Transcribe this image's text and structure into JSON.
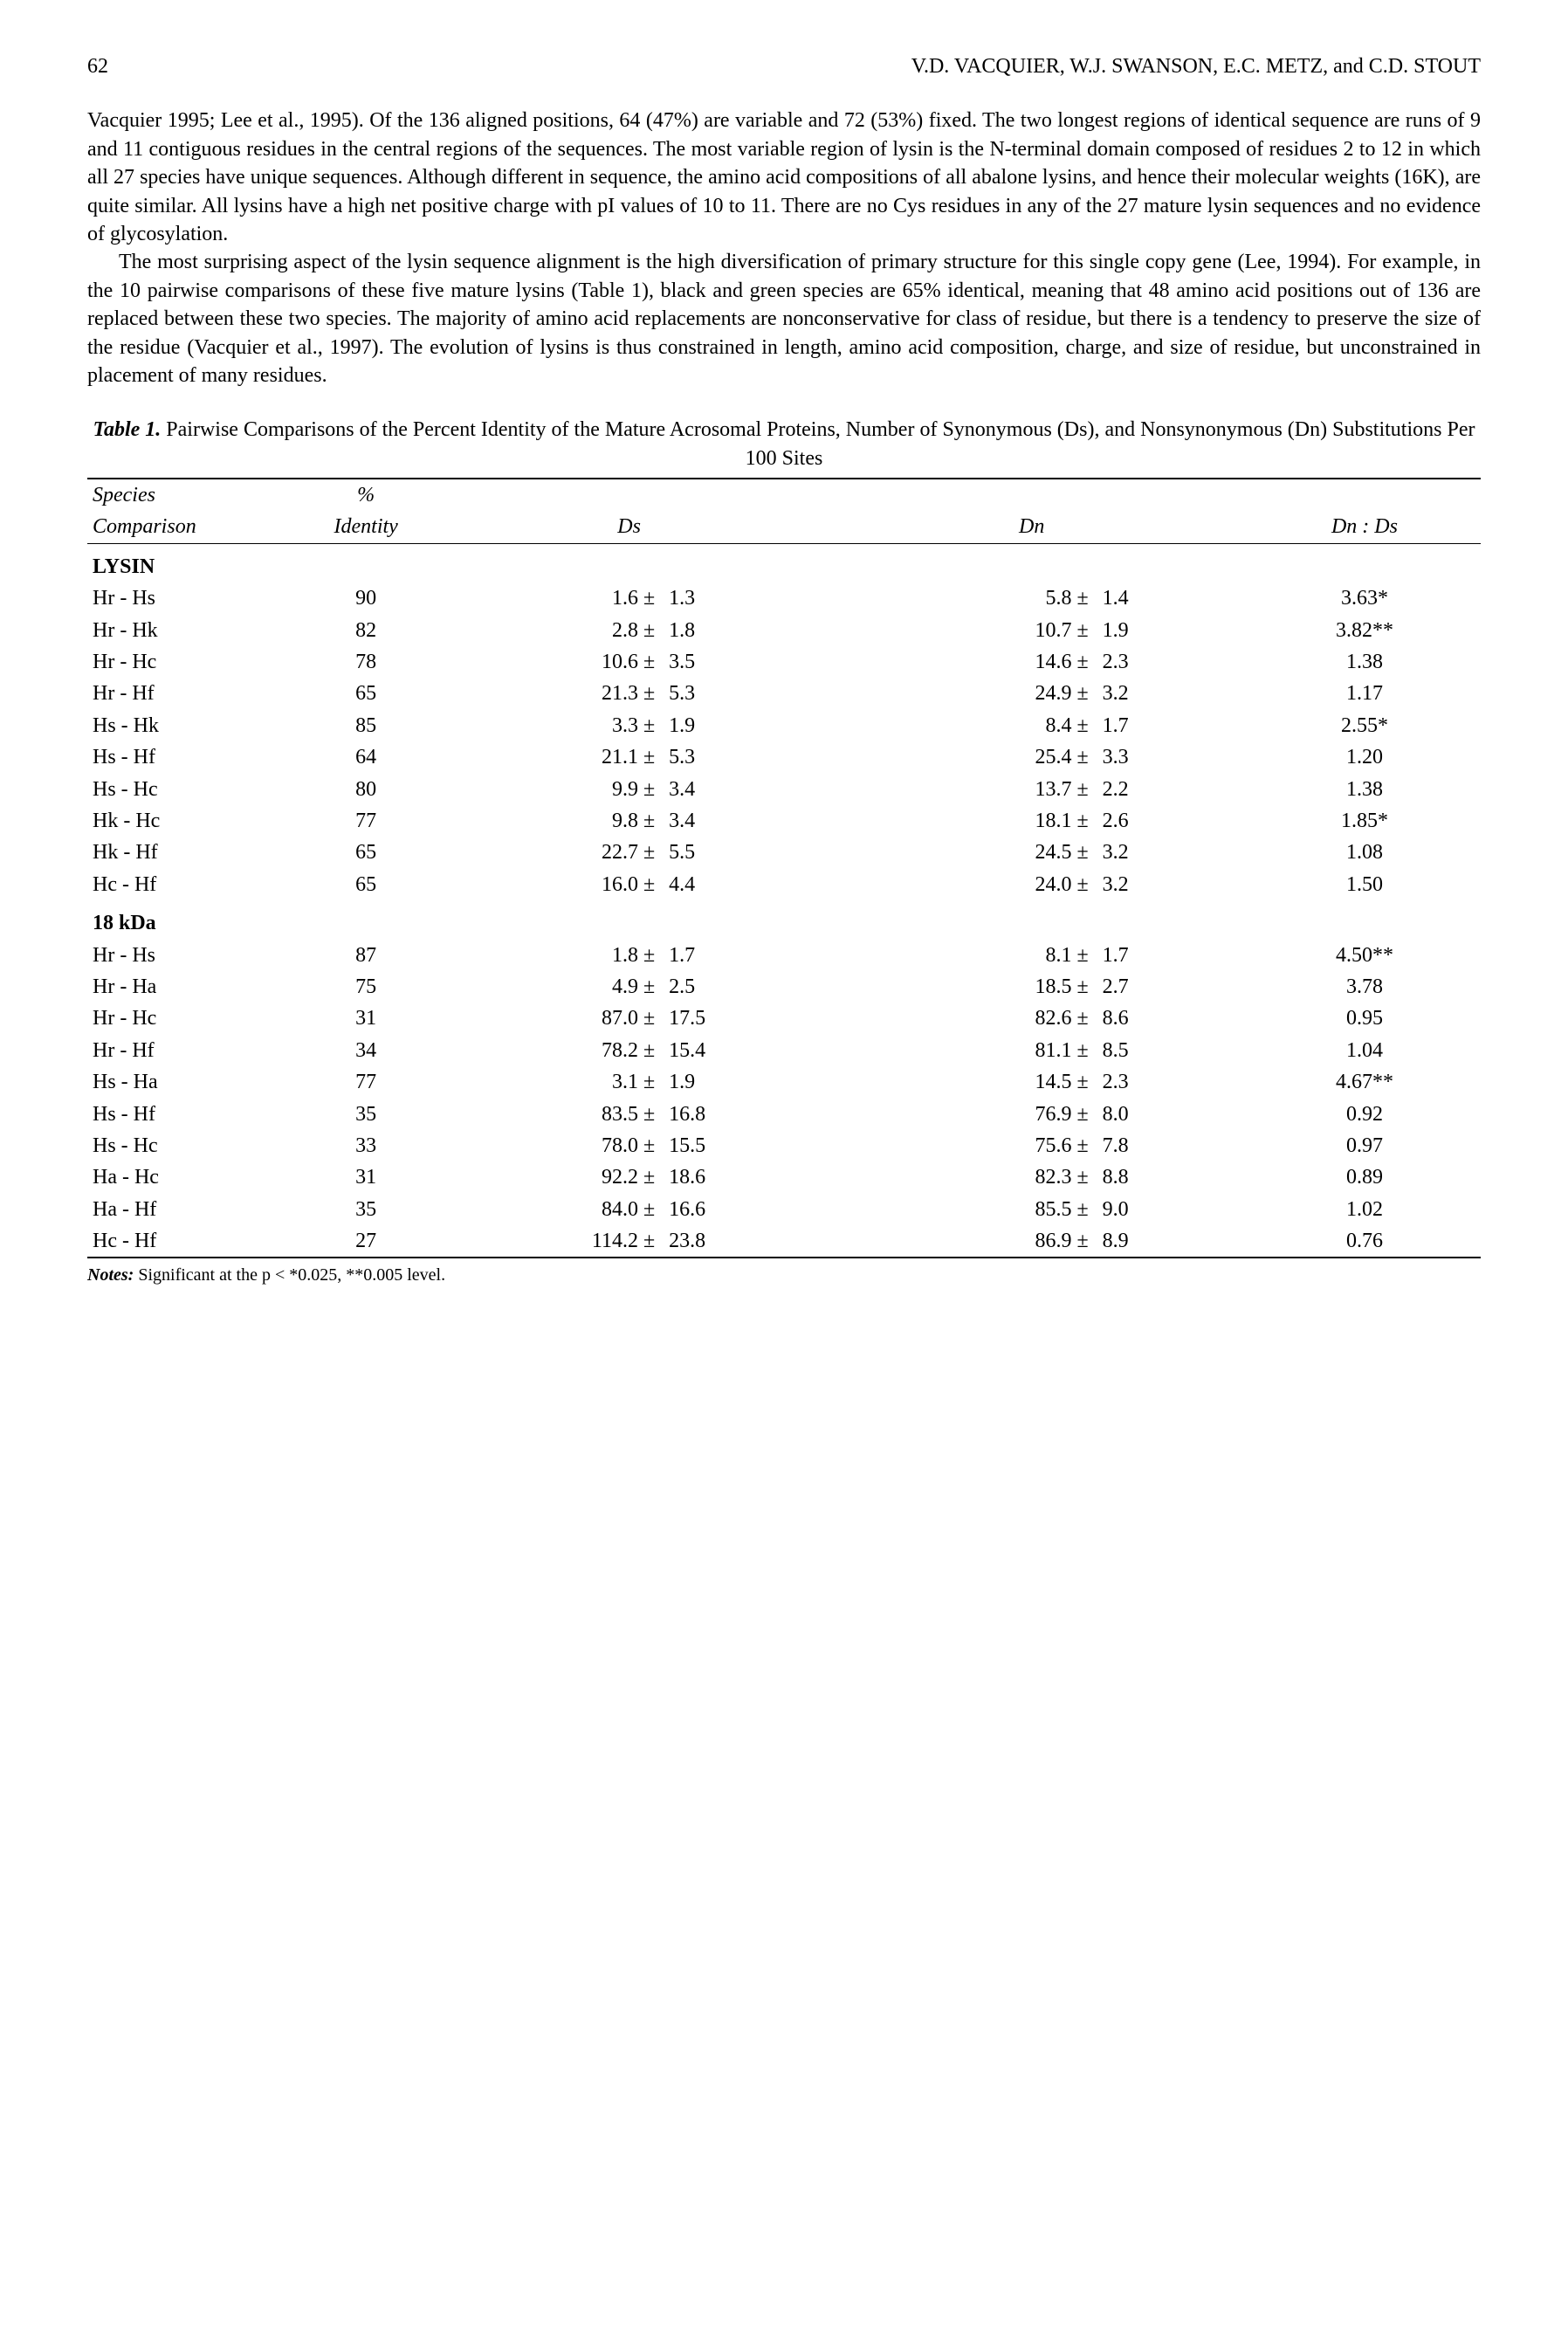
{
  "header": {
    "page_number": "62",
    "running_head": "V.D. VACQUIER, W.J. SWANSON, E.C. METZ, and C.D. STOUT"
  },
  "paragraphs": {
    "p1": "Vacquier 1995; Lee et al., 1995). Of the 136 aligned positions, 64 (47%) are variable and 72 (53%) fixed. The two longest regions of identical sequence are runs of 9 and 11 contiguous residues in the central regions of the sequences. The most variable region of lysin is the N-terminal domain composed of residues 2 to 12 in which all 27 species have unique sequences. Although different in sequence, the amino acid compositions of all abalone lysins, and hence their molecular weights (16K), are quite similar. All lysins have a high net positive charge with pI values of 10 to 11. There are no Cys residues in any of the 27 mature lysin sequences and no evidence of glycosylation.",
    "p2": "The most surprising aspect of the lysin sequence alignment is the high diversification of primary structure for this single copy gene (Lee, 1994). For example, in the 10 pairwise comparisons of these five mature lysins (Table 1), black and green species are 65% identical, meaning that 48 amino acid positions out of 136 are replaced between these two species. The majority of amino acid replacements are nonconservative for class of residue, but there is a tendency to preserve the size of the residue (Vacquier et al., 1997). The evolution of lysins is thus constrained in length, amino acid composition, charge, and size of residue, but unconstrained in placement of many residues."
  },
  "table": {
    "caption_label": "Table 1.",
    "caption_text": "Pairwise Comparisons of the Percent Identity of the Mature Acrosomal Proteins, Number of Synonymous (Ds), and Nonsynonymous (Dn) Substitutions Per 100 Sites",
    "columns": {
      "c1a": "Species",
      "c1b": "Comparison",
      "c2a": "%",
      "c2b": "Identity",
      "c3": "Ds",
      "c4": "Dn",
      "c5": "Dn : Ds"
    },
    "sections": [
      {
        "title": "LYSIN",
        "rows": [
          {
            "sp": "Hr - Hs",
            "id": "90",
            "dsv": "1.6 ±",
            "dse": "1.3",
            "dnv": "5.8 ±",
            "dne": "1.4",
            "ratio": "3.63*"
          },
          {
            "sp": "Hr - Hk",
            "id": "82",
            "dsv": "2.8 ±",
            "dse": "1.8",
            "dnv": "10.7 ±",
            "dne": "1.9",
            "ratio": "3.82**"
          },
          {
            "sp": "Hr - Hc",
            "id": "78",
            "dsv": "10.6 ±",
            "dse": "3.5",
            "dnv": "14.6 ±",
            "dne": "2.3",
            "ratio": "1.38"
          },
          {
            "sp": "Hr - Hf",
            "id": "65",
            "dsv": "21.3 ±",
            "dse": "5.3",
            "dnv": "24.9 ±",
            "dne": "3.2",
            "ratio": "1.17"
          },
          {
            "sp": "Hs - Hk",
            "id": "85",
            "dsv": "3.3 ±",
            "dse": "1.9",
            "dnv": "8.4 ±",
            "dne": "1.7",
            "ratio": "2.55*"
          },
          {
            "sp": "Hs - Hf",
            "id": "64",
            "dsv": "21.1 ±",
            "dse": "5.3",
            "dnv": "25.4 ±",
            "dne": "3.3",
            "ratio": "1.20"
          },
          {
            "sp": "Hs - Hc",
            "id": "80",
            "dsv": "9.9 ±",
            "dse": "3.4",
            "dnv": "13.7 ±",
            "dne": "2.2",
            "ratio": "1.38"
          },
          {
            "sp": "Hk - Hc",
            "id": "77",
            "dsv": "9.8 ±",
            "dse": "3.4",
            "dnv": "18.1 ±",
            "dne": "2.6",
            "ratio": "1.85*"
          },
          {
            "sp": "Hk - Hf",
            "id": "65",
            "dsv": "22.7 ±",
            "dse": "5.5",
            "dnv": "24.5 ±",
            "dne": "3.2",
            "ratio": "1.08"
          },
          {
            "sp": "Hc - Hf",
            "id": "65",
            "dsv": "16.0 ±",
            "dse": "4.4",
            "dnv": "24.0 ±",
            "dne": "3.2",
            "ratio": "1.50"
          }
        ]
      },
      {
        "title": "18 kDa",
        "rows": [
          {
            "sp": "Hr - Hs",
            "id": "87",
            "dsv": "1.8 ±",
            "dse": "1.7",
            "dnv": "8.1 ±",
            "dne": "1.7",
            "ratio": "4.50**"
          },
          {
            "sp": "Hr - Ha",
            "id": "75",
            "dsv": "4.9 ±",
            "dse": "2.5",
            "dnv": "18.5 ±",
            "dne": "2.7",
            "ratio": "3.78"
          },
          {
            "sp": "Hr - Hc",
            "id": "31",
            "dsv": "87.0 ±",
            "dse": "17.5",
            "dnv": "82.6 ±",
            "dne": "8.6",
            "ratio": "0.95"
          },
          {
            "sp": "Hr - Hf",
            "id": "34",
            "dsv": "78.2 ±",
            "dse": "15.4",
            "dnv": "81.1 ±",
            "dne": "8.5",
            "ratio": "1.04"
          },
          {
            "sp": "Hs - Ha",
            "id": "77",
            "dsv": "3.1 ±",
            "dse": "1.9",
            "dnv": "14.5 ±",
            "dne": "2.3",
            "ratio": "4.67**"
          },
          {
            "sp": "Hs - Hf",
            "id": "35",
            "dsv": "83.5 ±",
            "dse": "16.8",
            "dnv": "76.9 ±",
            "dne": "8.0",
            "ratio": "0.92"
          },
          {
            "sp": "Hs - Hc",
            "id": "33",
            "dsv": "78.0 ±",
            "dse": "15.5",
            "dnv": "75.6 ±",
            "dne": "7.8",
            "ratio": "0.97"
          },
          {
            "sp": "Ha - Hc",
            "id": "31",
            "dsv": "92.2 ±",
            "dse": "18.6",
            "dnv": "82.3 ±",
            "dne": "8.8",
            "ratio": "0.89"
          },
          {
            "sp": "Ha - Hf",
            "id": "35",
            "dsv": "84.0 ±",
            "dse": "16.6",
            "dnv": "85.5 ±",
            "dne": "9.0",
            "ratio": "1.02"
          },
          {
            "sp": "Hc - Hf",
            "id": "27",
            "dsv": "114.2 ±",
            "dse": "23.8",
            "dnv": "86.9 ±",
            "dne": "8.9",
            "ratio": "0.76"
          }
        ]
      }
    ],
    "notes_label": "Notes:",
    "notes_text": "Significant at the p < *0.025, **0.005 level."
  }
}
